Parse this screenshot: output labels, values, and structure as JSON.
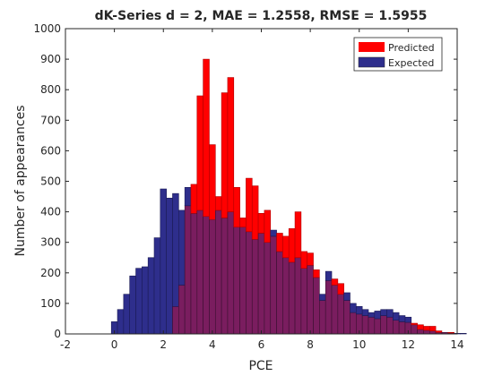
{
  "chart_data": {
    "type": "bar",
    "title": "dK-Series d = 2, MAE = 1.2558, RMSE = 1.5955",
    "xlabel": "PCE",
    "ylabel": "Number of appearances",
    "xlim": [
      -2,
      14
    ],
    "ylim": [
      0,
      1000
    ],
    "xticks": [
      "-2",
      "0",
      "2",
      "4",
      "6",
      "8",
      "10",
      "12",
      "14"
    ],
    "yticks": [
      "0",
      "100",
      "200",
      "300",
      "400",
      "500",
      "600",
      "700",
      "800",
      "900",
      "1000"
    ],
    "grid": false,
    "legend_position": "top-right",
    "bin_width": 0.25,
    "colors": {
      "predicted": "#ff0000",
      "expected": "#2e2e8c",
      "overlap": "#7a1d5f"
    },
    "series": [
      {
        "name": "Predicted",
        "bin_edges_start": -0.125,
        "values": [
          0,
          0,
          0,
          0,
          0,
          0,
          0,
          0,
          0,
          0,
          90,
          160,
          420,
          490,
          780,
          900,
          620,
          450,
          790,
          840,
          480,
          380,
          510,
          485,
          395,
          405,
          320,
          330,
          320,
          345,
          400,
          270,
          265,
          210,
          110,
          175,
          180,
          165,
          110,
          70,
          65,
          60,
          55,
          50,
          60,
          55,
          45,
          40,
          38,
          35,
          30,
          25,
          25,
          10,
          5,
          5,
          0,
          0
        ]
      },
      {
        "name": "Expected",
        "bin_edges_start": -0.125,
        "values": [
          40,
          80,
          130,
          190,
          215,
          220,
          250,
          315,
          475,
          445,
          460,
          405,
          480,
          395,
          405,
          385,
          375,
          405,
          380,
          400,
          350,
          350,
          335,
          310,
          330,
          300,
          340,
          270,
          250,
          235,
          250,
          215,
          225,
          185,
          130,
          205,
          160,
          130,
          135,
          100,
          90,
          80,
          70,
          75,
          80,
          80,
          70,
          60,
          55,
          30,
          15,
          12,
          10,
          5,
          5,
          3,
          2,
          2
        ]
      }
    ]
  }
}
